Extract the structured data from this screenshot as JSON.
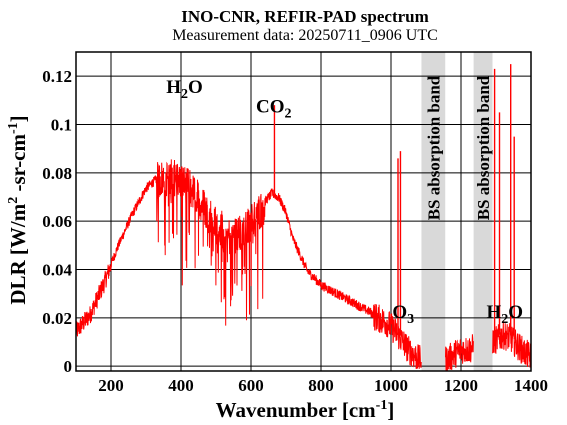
{
  "chart_data": {
    "type": "line",
    "title": "INO-CNR, REFIR-PAD spectrum",
    "subtitle": "Measurement data: 20250711_0906 UTC",
    "xlabel": {
      "main": "Wavenumber [cm",
      "sup": "-1",
      "tail": "]"
    },
    "ylabel": {
      "main": "DLR [W/m",
      "sup1": "2",
      "mid": " -sr-cm",
      "sup2": "-1",
      "tail": "]"
    },
    "xlim": [
      100,
      1400
    ],
    "ylim": [
      -0.002,
      0.13
    ],
    "xticks": [
      200,
      400,
      600,
      800,
      1000,
      1200,
      1400
    ],
    "xtick_labels": [
      "200",
      "400",
      "600",
      "800",
      "1000",
      "1200",
      "1400"
    ],
    "yticks": [
      0,
      0.02,
      0.04,
      0.06,
      0.08,
      0.1,
      0.12
    ],
    "ytick_labels": [
      "0",
      "0.02",
      "0.04",
      "0.06",
      "0.08",
      "0.1",
      "0.12"
    ],
    "grid": true,
    "line_color": "#ff0000",
    "band_color": "#d9d9d9",
    "bands": [
      {
        "x0": 1087,
        "x1": 1155,
        "label": "BS absorption band"
      },
      {
        "x0": 1236,
        "x1": 1290,
        "label": "BS absorption band"
      }
    ],
    "annotations": [
      {
        "text": "H",
        "sub": "2",
        "tail": "O",
        "x": 410,
        "y": 0.113
      },
      {
        "text": "CO",
        "sub": "2",
        "tail": "",
        "x": 665,
        "y": 0.105
      },
      {
        "text": "O",
        "sub": "3",
        "tail": "",
        "x": 1035,
        "y": 0.02
      },
      {
        "text": "H",
        "sub": "2",
        "tail": "O",
        "x": 1325,
        "y": 0.02
      }
    ],
    "series": [
      {
        "x": [
          100,
          140,
          180,
          220,
          260,
          300,
          340,
          380,
          420,
          460,
          500,
          540,
          580,
          620,
          660,
          680,
          700,
          720,
          760,
          800,
          850,
          900,
          950,
          990,
          1010,
          1030,
          1050,
          1080,
          1160,
          1180,
          1200,
          1220,
          1300,
          1320,
          1340,
          1360,
          1380,
          1400
        ],
        "y": [
          0.015,
          0.022,
          0.035,
          0.05,
          0.063,
          0.074,
          0.079,
          0.08,
          0.076,
          0.069,
          0.06,
          0.055,
          0.057,
          0.065,
          0.072,
          0.07,
          0.064,
          0.053,
          0.04,
          0.034,
          0.03,
          0.026,
          0.022,
          0.019,
          0.016,
          0.012,
          0.008,
          0.004,
          0.004,
          0.006,
          0.008,
          0.008,
          0.012,
          0.014,
          0.013,
          0.01,
          0.007,
          0.005
        ]
      }
    ],
    "spikes": [
      {
        "x": 667,
        "y": 0.108
      },
      {
        "x": 1020,
        "y": 0.086
      },
      {
        "x": 1027,
        "y": 0.089
      },
      {
        "x": 1296,
        "y": 0.123
      },
      {
        "x": 1310,
        "y": 0.105
      },
      {
        "x": 1342,
        "y": 0.125
      },
      {
        "x": 1352,
        "y": 0.095
      }
    ]
  }
}
